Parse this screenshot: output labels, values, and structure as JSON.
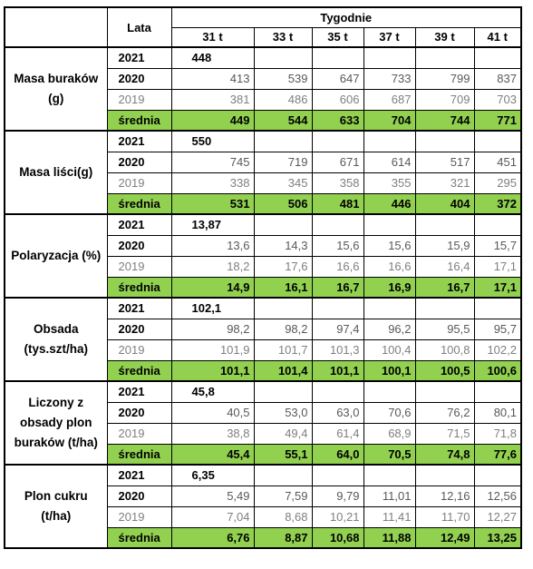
{
  "header": {
    "lata": "Lata",
    "tygodnie": "Tygodnie",
    "weeks": [
      "31 t",
      "33 t",
      "35 t",
      "37 t",
      "39 t",
      "41 t"
    ]
  },
  "groups": [
    {
      "label": "Masa buraków (g)",
      "rows": [
        {
          "year": "2021",
          "values": [
            "448"
          ]
        },
        {
          "year": "2020",
          "values": [
            "413",
            "539",
            "647",
            "733",
            "799",
            "837"
          ]
        },
        {
          "year": "2019",
          "values": [
            "381",
            "486",
            "606",
            "687",
            "709",
            "703"
          ]
        },
        {
          "year": "średnia",
          "values": [
            "449",
            "544",
            "633",
            "704",
            "744",
            "771"
          ]
        }
      ]
    },
    {
      "label": "Masa liści(g)",
      "rows": [
        {
          "year": "2021",
          "values": [
            "550"
          ]
        },
        {
          "year": "2020",
          "values": [
            "745",
            "719",
            "671",
            "614",
            "517",
            "451"
          ]
        },
        {
          "year": "2019",
          "values": [
            "338",
            "345",
            "358",
            "355",
            "321",
            "295"
          ]
        },
        {
          "year": "średnia",
          "values": [
            "531",
            "506",
            "481",
            "446",
            "404",
            "372"
          ]
        }
      ]
    },
    {
      "label": "Polaryzacja (%)",
      "rows": [
        {
          "year": "2021",
          "values": [
            "13,87"
          ]
        },
        {
          "year": "2020",
          "values": [
            "13,6",
            "14,3",
            "15,6",
            "15,6",
            "15,9",
            "15,7"
          ]
        },
        {
          "year": "2019",
          "values": [
            "18,2",
            "17,6",
            "16,6",
            "16,6",
            "16,4",
            "17,1"
          ]
        },
        {
          "year": "średnia",
          "values": [
            "14,9",
            "16,1",
            "16,7",
            "16,9",
            "16,7",
            "17,1"
          ]
        }
      ]
    },
    {
      "label": "Obsada (tys.szt/ha)",
      "rows": [
        {
          "year": "2021",
          "values": [
            "102,1"
          ]
        },
        {
          "year": "2020",
          "values": [
            "98,2",
            "98,2",
            "97,4",
            "96,2",
            "95,5",
            "95,7"
          ]
        },
        {
          "year": "2019",
          "values": [
            "101,9",
            "101,7",
            "101,3",
            "100,4",
            "100,8",
            "102,2"
          ]
        },
        {
          "year": "średnia",
          "values": [
            "101,1",
            "101,4",
            "101,1",
            "100,1",
            "100,5",
            "100,6"
          ]
        }
      ]
    },
    {
      "label": "Liczony z obsady plon buraków (t/ha)",
      "rows": [
        {
          "year": "2021",
          "values": [
            "45,8"
          ]
        },
        {
          "year": "2020",
          "values": [
            "40,5",
            "53,0",
            "63,0",
            "70,6",
            "76,2",
            "80,1"
          ]
        },
        {
          "year": "2019",
          "values": [
            "38,8",
            "49,4",
            "61,4",
            "68,9",
            "71,5",
            "71,8"
          ]
        },
        {
          "year": "średnia",
          "values": [
            "45,4",
            "55,1",
            "64,0",
            "70,5",
            "74,8",
            "77,6"
          ]
        }
      ]
    },
    {
      "label": "Plon cukru (t/ha)",
      "rows": [
        {
          "year": "2021",
          "values": [
            "6,35"
          ]
        },
        {
          "year": "2020",
          "values": [
            "5,49",
            "7,59",
            "9,79",
            "11,01",
            "12,16",
            "12,56"
          ]
        },
        {
          "year": "2019",
          "values": [
            "7,04",
            "8,68",
            "10,21",
            "11,41",
            "11,70",
            "12,27"
          ]
        },
        {
          "year": "średnia",
          "values": [
            "6,76",
            "8,87",
            "10,68",
            "11,88",
            "12,49",
            "13,25"
          ]
        }
      ]
    }
  ],
  "colors": {
    "average_bg": "#92d050",
    "row_2019_text": "#7f7f7f",
    "row_2020_text": "#595959"
  }
}
